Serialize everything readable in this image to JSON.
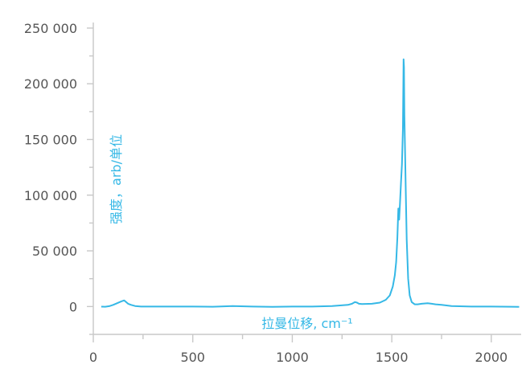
{
  "chart_data": {
    "type": "line",
    "xlabel": "拉曼位移, cm⁻¹",
    "ylabel": "强度，arb/单位",
    "xlim": [
      0,
      2150
    ],
    "ylim": [
      -25000,
      255000
    ],
    "x_ticks": [
      "0",
      "500",
      "1000",
      "1500",
      "2000"
    ],
    "y_ticks": [
      "0",
      "50 000",
      "100 000",
      "150 000",
      "200 000",
      "250 000"
    ],
    "grid": false,
    "line_color": "#35b8e6",
    "series": [
      {
        "x": [
          40,
          60,
          80,
          100,
          120,
          140,
          155,
          165,
          175,
          190,
          210,
          240,
          300,
          400,
          500,
          600,
          700,
          800,
          900,
          1000,
          1100,
          1200,
          1280,
          1300,
          1315,
          1325,
          1335,
          1350,
          1400,
          1440,
          1470,
          1490,
          1505,
          1515,
          1522,
          1528,
          1533,
          1537,
          1541,
          1546,
          1551,
          1556,
          1559,
          1561,
          1563,
          1566,
          1570,
          1575,
          1582,
          1590,
          1600,
          1615,
          1630,
          1650,
          1680,
          1700,
          1720,
          1750,
          1800,
          1900,
          2000,
          2100,
          2140
        ],
        "values": [
          -100,
          -200,
          300,
          1500,
          3000,
          4500,
          5500,
          4000,
          2500,
          1500,
          500,
          0,
          0,
          0,
          0,
          -200,
          500,
          0,
          -300,
          0,
          0,
          500,
          1500,
          2500,
          4000,
          3500,
          2500,
          2200,
          2500,
          3500,
          6000,
          10000,
          18000,
          28000,
          40000,
          62000,
          88000,
          78000,
          92000,
          110000,
          128000,
          160000,
          222000,
          215000,
          172000,
          145000,
          105000,
          60000,
          25000,
          10000,
          4000,
          2000,
          2000,
          2500,
          3000,
          2500,
          2000,
          1500,
          500,
          0,
          0,
          -200,
          -300
        ]
      }
    ]
  }
}
